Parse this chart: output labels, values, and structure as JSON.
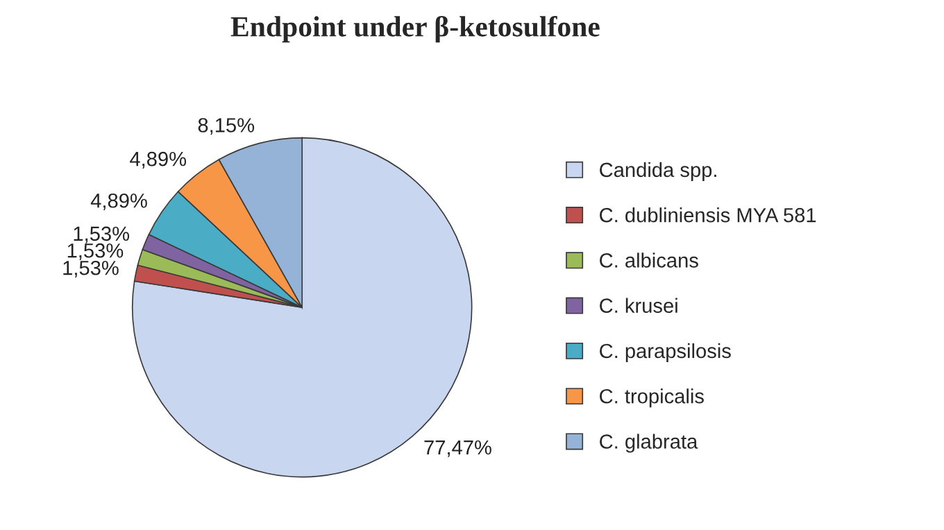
{
  "chart_data": {
    "type": "pie",
    "title": "Endpoint under β-ketosulfone",
    "categories": [
      "Candida spp.",
      "C. dubliniensis MYA 581",
      "C. albicans",
      "C. krusei",
      "C. parapsilosis",
      "C. tropicalis",
      "C. glabrata"
    ],
    "values": [
      77.47,
      1.53,
      1.53,
      1.53,
      4.89,
      4.89,
      8.15
    ],
    "value_labels": [
      "77,47%",
      "1,53%",
      "1,53%",
      "1,53%",
      "4,89%",
      "4,89%",
      "8,15%"
    ],
    "colors": [
      "#c9d6f0",
      "#c0504d",
      "#9bbb59",
      "#8064a2",
      "#4bacc6",
      "#f79646",
      "#95b3d7"
    ],
    "legend": "right"
  }
}
